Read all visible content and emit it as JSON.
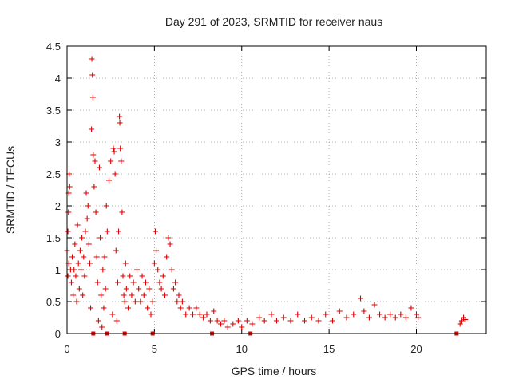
{
  "chart_data": {
    "type": "scatter",
    "title": "Day 291 of 2023, SRMTID for receiver naus",
    "xlabel": "GPS time / hours",
    "ylabel": "SRMTID / TECUs",
    "xlim": [
      0,
      24
    ],
    "ylim": [
      0,
      4.5
    ],
    "xticks": [
      0,
      5,
      10,
      15,
      20
    ],
    "yticks": [
      0,
      0.5,
      1,
      1.5,
      2,
      2.5,
      3,
      3.5,
      4,
      4.5
    ],
    "grid": true,
    "marker": "plus",
    "marker_color": "#e00000",
    "series": [
      {
        "name": "SRMTID",
        "points": [
          [
            0.0,
            1.3
          ],
          [
            0.05,
            1.6
          ],
          [
            0.1,
            2.2
          ],
          [
            0.12,
            2.5
          ],
          [
            0.15,
            2.3
          ],
          [
            0.08,
            1.9
          ],
          [
            0.05,
            0.9
          ],
          [
            0.1,
            1.1
          ],
          [
            0.2,
            1.0
          ],
          [
            0.25,
            0.8
          ],
          [
            0.3,
            1.2
          ],
          [
            0.35,
            0.6
          ],
          [
            0.4,
            1.0
          ],
          [
            0.45,
            1.4
          ],
          [
            0.5,
            0.9
          ],
          [
            0.55,
            0.5
          ],
          [
            0.6,
            1.7
          ],
          [
            0.65,
            1.1
          ],
          [
            0.7,
            0.7
          ],
          [
            0.75,
            1.3
          ],
          [
            0.8,
            1.0
          ],
          [
            0.85,
            1.5
          ],
          [
            0.9,
            0.6
          ],
          [
            0.95,
            1.2
          ],
          [
            1.0,
            0.9
          ],
          [
            1.05,
            1.6
          ],
          [
            1.1,
            2.2
          ],
          [
            1.15,
            1.8
          ],
          [
            1.2,
            2.0
          ],
          [
            1.25,
            1.4
          ],
          [
            1.3,
            1.1
          ],
          [
            1.35,
            0.4
          ],
          [
            1.4,
            3.2
          ],
          [
            1.42,
            4.3
          ],
          [
            1.45,
            4.05
          ],
          [
            1.48,
            3.7
          ],
          [
            1.5,
            2.8
          ],
          [
            1.55,
            2.3
          ],
          [
            1.6,
            2.7
          ],
          [
            1.65,
            1.9
          ],
          [
            1.7,
            1.2
          ],
          [
            1.75,
            0.8
          ],
          [
            1.8,
            0.2
          ],
          [
            1.85,
            2.6
          ],
          [
            1.9,
            1.5
          ],
          [
            1.95,
            0.6
          ],
          [
            2.0,
            0.1
          ],
          [
            2.05,
            1.0
          ],
          [
            2.1,
            0.4
          ],
          [
            2.15,
            1.2
          ],
          [
            2.2,
            0.7
          ],
          [
            2.25,
            2.0
          ],
          [
            2.3,
            1.6
          ],
          [
            2.4,
            2.4
          ],
          [
            2.5,
            2.7
          ],
          [
            2.6,
            0.3
          ],
          [
            2.65,
            2.9
          ],
          [
            2.7,
            2.85
          ],
          [
            2.75,
            2.5
          ],
          [
            2.8,
            1.3
          ],
          [
            2.85,
            0.2
          ],
          [
            2.9,
            0.8
          ],
          [
            2.95,
            1.6
          ],
          [
            3.0,
            3.4
          ],
          [
            3.02,
            3.3
          ],
          [
            3.05,
            2.9
          ],
          [
            3.1,
            2.7
          ],
          [
            3.15,
            1.9
          ],
          [
            3.2,
            0.9
          ],
          [
            3.25,
            0.6
          ],
          [
            3.3,
            0.5
          ],
          [
            3.35,
            1.1
          ],
          [
            3.4,
            0.7
          ],
          [
            3.5,
            0.4
          ],
          [
            3.6,
            0.9
          ],
          [
            3.7,
            0.6
          ],
          [
            3.8,
            0.8
          ],
          [
            3.9,
            0.5
          ],
          [
            4.0,
            1.0
          ],
          [
            4.1,
            0.7
          ],
          [
            4.2,
            0.5
          ],
          [
            4.3,
            0.9
          ],
          [
            4.4,
            0.6
          ],
          [
            4.5,
            0.8
          ],
          [
            4.6,
            0.4
          ],
          [
            4.7,
            0.7
          ],
          [
            4.8,
            0.3
          ],
          [
            4.9,
            0.5
          ],
          [
            5.0,
            1.1
          ],
          [
            5.05,
            1.6
          ],
          [
            5.1,
            1.3
          ],
          [
            5.2,
            1.0
          ],
          [
            5.3,
            0.8
          ],
          [
            5.4,
            0.7
          ],
          [
            5.5,
            0.9
          ],
          [
            5.6,
            0.6
          ],
          [
            5.7,
            1.2
          ],
          [
            5.8,
            1.5
          ],
          [
            5.9,
            1.4
          ],
          [
            6.0,
            1.0
          ],
          [
            6.1,
            0.7
          ],
          [
            6.2,
            0.8
          ],
          [
            6.3,
            0.5
          ],
          [
            6.4,
            0.6
          ],
          [
            6.5,
            0.4
          ],
          [
            6.6,
            0.5
          ],
          [
            6.8,
            0.3
          ],
          [
            7.0,
            0.4
          ],
          [
            7.2,
            0.3
          ],
          [
            7.4,
            0.4
          ],
          [
            7.6,
            0.3
          ],
          [
            7.8,
            0.25
          ],
          [
            8.0,
            0.3
          ],
          [
            8.2,
            0.2
          ],
          [
            8.4,
            0.35
          ],
          [
            8.6,
            0.2
          ],
          [
            8.8,
            0.15
          ],
          [
            9.0,
            0.2
          ],
          [
            9.2,
            0.1
          ],
          [
            9.5,
            0.15
          ],
          [
            9.8,
            0.2
          ],
          [
            10.0,
            0.1
          ],
          [
            10.3,
            0.2
          ],
          [
            10.6,
            0.15
          ],
          [
            11.0,
            0.25
          ],
          [
            11.3,
            0.2
          ],
          [
            11.7,
            0.3
          ],
          [
            12.0,
            0.2
          ],
          [
            12.4,
            0.25
          ],
          [
            12.8,
            0.2
          ],
          [
            13.2,
            0.3
          ],
          [
            13.6,
            0.2
          ],
          [
            14.0,
            0.25
          ],
          [
            14.4,
            0.2
          ],
          [
            14.8,
            0.3
          ],
          [
            15.2,
            0.2
          ],
          [
            15.6,
            0.35
          ],
          [
            16.0,
            0.25
          ],
          [
            16.4,
            0.3
          ],
          [
            16.8,
            0.55
          ],
          [
            17.0,
            0.35
          ],
          [
            17.3,
            0.25
          ],
          [
            17.6,
            0.45
          ],
          [
            17.9,
            0.3
          ],
          [
            18.2,
            0.25
          ],
          [
            18.5,
            0.3
          ],
          [
            18.8,
            0.25
          ],
          [
            19.1,
            0.3
          ],
          [
            19.4,
            0.25
          ],
          [
            19.7,
            0.4
          ],
          [
            20.0,
            0.3
          ],
          [
            20.1,
            0.25
          ],
          [
            22.5,
            0.15
          ],
          [
            22.6,
            0.2
          ],
          [
            22.7,
            0.25
          ],
          [
            22.8,
            0.22
          ]
        ]
      },
      {
        "name": "baseline",
        "points": [
          [
            1.5,
            0.0
          ],
          [
            2.3,
            0.0
          ],
          [
            3.3,
            0.0
          ],
          [
            4.9,
            0.0
          ],
          [
            8.3,
            0.0
          ],
          [
            10.5,
            0.0
          ],
          [
            22.3,
            0.0
          ]
        ]
      }
    ]
  }
}
